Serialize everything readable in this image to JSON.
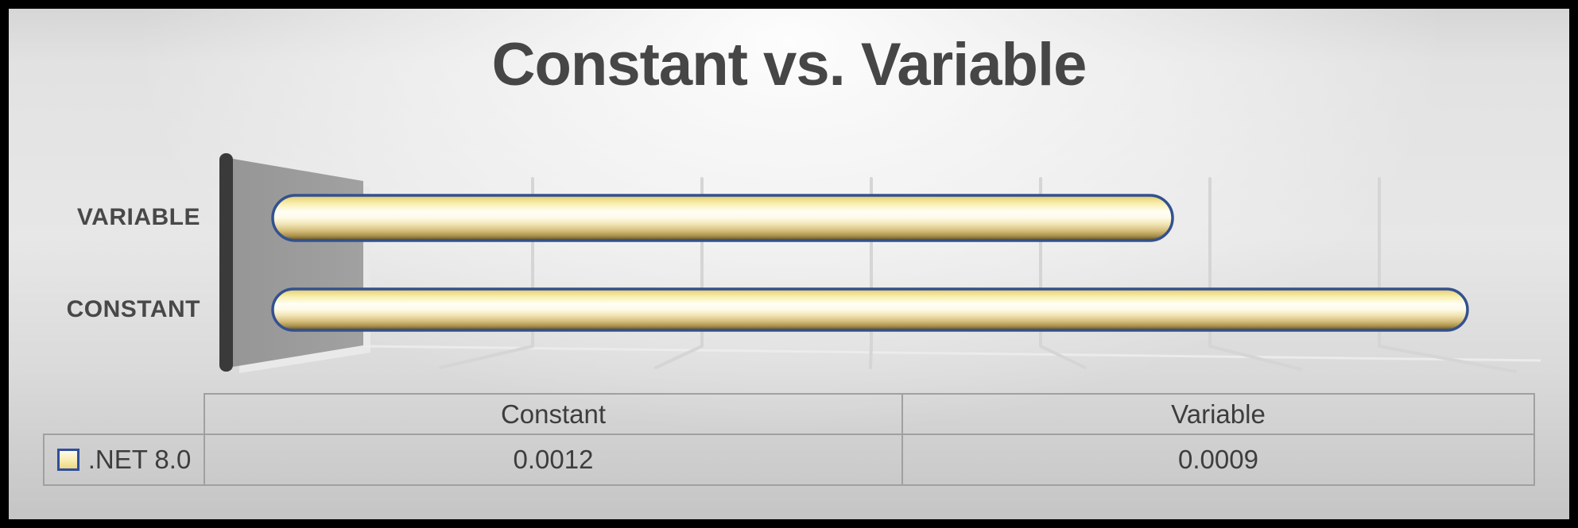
{
  "chart_data": {
    "type": "bar",
    "subtype": "cylinder-3d",
    "orientation": "horizontal",
    "title": "Constant vs. Variable",
    "categories": [
      "VARIABLE",
      "CONSTANT"
    ],
    "series": [
      {
        "name": ".NET 8.0",
        "values": [
          0.0009,
          0.0012
        ]
      }
    ],
    "value_axis": {
      "min": 0,
      "tick_labels_visible": false,
      "gridlines_visible": true
    },
    "legend": {
      "position": "bottom-table",
      "entries": [
        ".NET 8.0"
      ]
    }
  },
  "table": {
    "columns": [
      "Constant",
      "Variable"
    ],
    "rows": [
      {
        "label": ".NET 8.0",
        "values": [
          "0.0012",
          "0.0009"
        ]
      }
    ]
  },
  "colors": {
    "frame": "#000000",
    "background": "#e4e4e4",
    "title_text": "#464646",
    "axis_label_text": "#484848",
    "bar_outline": "#33518f",
    "bar_gold": "#f2e38e",
    "bar_highlight": "#fffef5",
    "bar_shadow": "#574a26",
    "back_wall": "#9b9b9b",
    "category_axis_line": "#3a3a3a",
    "gridline": "#d5d5d5",
    "table_border": "#a0a0a0",
    "table_text": "#3d3d3d"
  }
}
